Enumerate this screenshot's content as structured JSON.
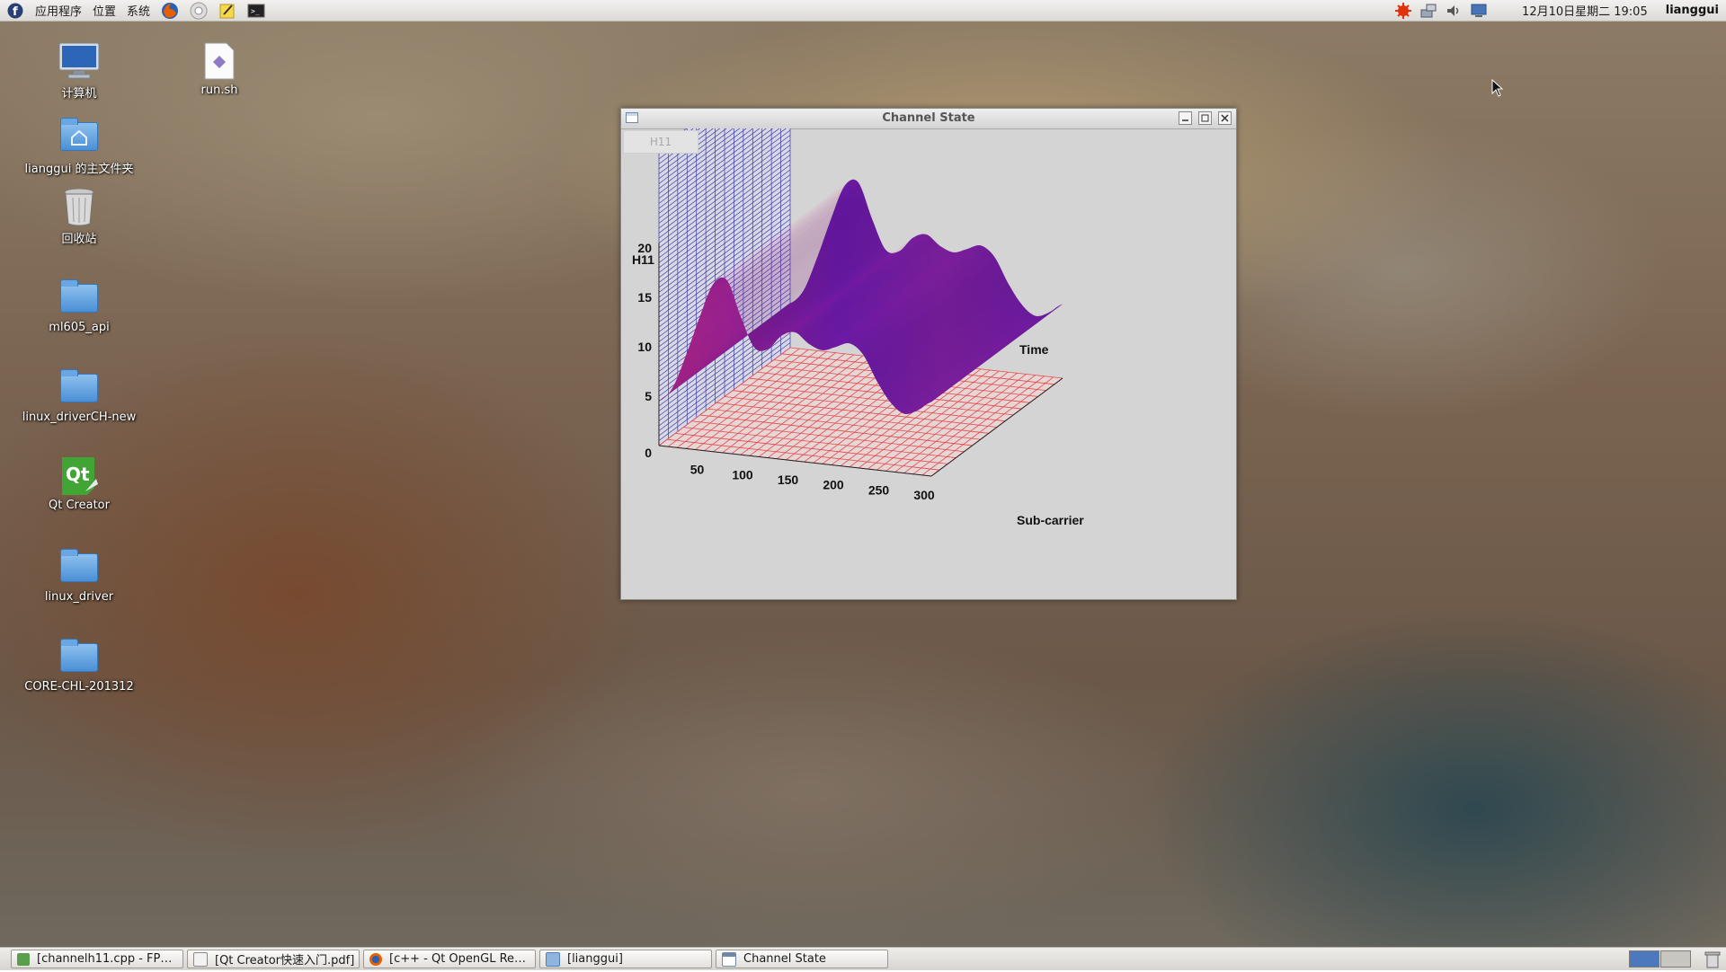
{
  "top_panel": {
    "menus": [
      "应用程序",
      "位置",
      "系统"
    ],
    "clock": "12月10日星期二 19:05",
    "username": "lianggui",
    "launchers": [
      "firefox-icon",
      "chromium-icon",
      "notes-icon",
      "terminal-icon"
    ],
    "tray": [
      "update-icon",
      "network-icon",
      "volume-icon",
      "display-icon"
    ]
  },
  "desktop_icons": [
    {
      "label": "计算机",
      "icon": "computer-icon"
    },
    {
      "label": "run.sh",
      "icon": "script-file-icon"
    },
    {
      "label": "lianggui 的主文件夹",
      "icon": "home-folder-icon"
    },
    {
      "label": "回收站",
      "icon": "trash-icon"
    },
    {
      "label": "ml605_api",
      "icon": "folder-icon"
    },
    {
      "label": "linux_driverCH-new",
      "icon": "folder-icon"
    },
    {
      "label": "Qt Creator",
      "icon": "qt-creator-icon"
    },
    {
      "label": "linux_driver",
      "icon": "folder-icon"
    },
    {
      "label": "CORE-CHL-201312",
      "icon": "folder-icon"
    }
  ],
  "window": {
    "title": "Channel State",
    "tab": "H11"
  },
  "chart_data": {
    "type": "surface-3d",
    "z_label": "H11",
    "x_label": "Sub-carrier",
    "y_label": "Time",
    "z_ticks": [
      "0",
      "5",
      "10",
      "15",
      "20"
    ],
    "x_ticks": [
      "50",
      "100",
      "150",
      "200",
      "250",
      "300"
    ],
    "zlim": [
      0,
      20
    ],
    "xlim": [
      0,
      300
    ],
    "surface_profile": {
      "x": [
        0,
        15,
        30,
        45,
        60,
        75,
        90,
        105,
        120,
        135,
        150,
        165,
        180,
        195,
        210,
        225,
        240,
        255,
        270,
        285,
        300
      ],
      "z": [
        4.5,
        6.0,
        9.5,
        13.5,
        17.0,
        17.5,
        14.0,
        11.0,
        11.0,
        12.5,
        13.0,
        12.0,
        11.5,
        12.0,
        12.5,
        11.5,
        9.0,
        7.0,
        6.0,
        6.5,
        7.5
      ]
    },
    "colors": {
      "surface_front": "#9a1f7d",
      "surface_mid": "#5a1aa8",
      "back_wall_grid": "#3a3aa8",
      "floor_grid": "#e8474a"
    }
  },
  "taskbar": {
    "tasks": [
      {
        "label": "[channelh11.cpp - FP…",
        "icon": "editor-icon"
      },
      {
        "label": "[Qt Creator快速入门.pdf]",
        "icon": "pdf-icon"
      },
      {
        "label": "[c++ - Qt OpenGL Re…",
        "icon": "firefox-icon"
      },
      {
        "label": "[lianggui]",
        "icon": "folder-icon"
      },
      {
        "label": "Channel State",
        "icon": "window-icon"
      }
    ]
  }
}
